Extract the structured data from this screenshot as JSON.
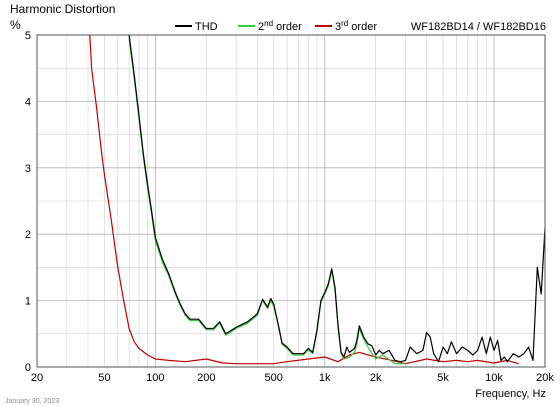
{
  "chart_data": {
    "type": "line",
    "title": "Harmonic Distortion",
    "ylabel": "%",
    "xlabel": "Frequency, Hz",
    "model_label": "WF182BD14 / WF182BD16",
    "date": "January 30, 2023",
    "x_scale": "log",
    "xlim": [
      20,
      20000
    ],
    "ylim": [
      0,
      5
    ],
    "grid": true,
    "legend_position": "top",
    "x_ticks": [
      {
        "v": 20,
        "label": "20"
      },
      {
        "v": 50,
        "label": "50"
      },
      {
        "v": 100,
        "label": "100"
      },
      {
        "v": 200,
        "label": "200"
      },
      {
        "v": 500,
        "label": "500"
      },
      {
        "v": 1000,
        "label": "1k"
      },
      {
        "v": 2000,
        "label": "2k"
      },
      {
        "v": 5000,
        "label": "5k"
      },
      {
        "v": 10000,
        "label": "10k"
      },
      {
        "v": 20000,
        "label": "20k"
      }
    ],
    "y_ticks": [
      {
        "v": 0,
        "label": "0"
      },
      {
        "v": 1,
        "label": "1"
      },
      {
        "v": 2,
        "label": "2"
      },
      {
        "v": 3,
        "label": "3"
      },
      {
        "v": 4,
        "label": "4"
      },
      {
        "v": 5,
        "label": "5"
      }
    ],
    "series": [
      {
        "name": "THD",
        "color": "#000000",
        "x": [
          70,
          75,
          80,
          85,
          90,
          95,
          100,
          110,
          120,
          130,
          140,
          150,
          160,
          180,
          200,
          220,
          240,
          260,
          280,
          300,
          350,
          400,
          430,
          460,
          480,
          500,
          530,
          560,
          600,
          650,
          700,
          750,
          800,
          850,
          900,
          950,
          1000,
          1050,
          1100,
          1150,
          1200,
          1250,
          1300,
          1350,
          1400,
          1500,
          1550,
          1600,
          1700,
          1800,
          1900,
          2000,
          2100,
          2200,
          2400,
          2600,
          2800,
          3000,
          3200,
          3500,
          3800,
          4000,
          4200,
          4400,
          4700,
          5000,
          5300,
          5600,
          6000,
          6500,
          7000,
          7500,
          8000,
          8500,
          9000,
          9500,
          10000,
          10500,
          11000,
          11500,
          12000,
          13000,
          14000,
          15000,
          16000,
          17000,
          18000,
          19000,
          20000
        ],
        "y": [
          5.0,
          4.4,
          3.8,
          3.2,
          2.75,
          2.35,
          1.95,
          1.62,
          1.4,
          1.15,
          0.95,
          0.8,
          0.72,
          0.72,
          0.58,
          0.58,
          0.68,
          0.5,
          0.55,
          0.6,
          0.68,
          0.8,
          1.02,
          0.9,
          1.03,
          0.95,
          0.66,
          0.36,
          0.3,
          0.2,
          0.2,
          0.2,
          0.28,
          0.22,
          0.55,
          1.0,
          1.12,
          1.25,
          1.48,
          1.2,
          0.62,
          0.22,
          0.15,
          0.3,
          0.22,
          0.28,
          0.4,
          0.62,
          0.45,
          0.35,
          0.32,
          0.18,
          0.25,
          0.2,
          0.25,
          0.1,
          0.08,
          0.1,
          0.3,
          0.2,
          0.25,
          0.52,
          0.45,
          0.2,
          0.08,
          0.3,
          0.2,
          0.38,
          0.2,
          0.3,
          0.25,
          0.18,
          0.25,
          0.45,
          0.2,
          0.45,
          0.25,
          0.4,
          0.1,
          0.15,
          0.08,
          0.2,
          0.15,
          0.2,
          0.3,
          0.1,
          1.5,
          1.1,
          2.1
        ]
      },
      {
        "name": "2nd order",
        "color": "#33cc33",
        "x": [
          70,
          75,
          80,
          85,
          90,
          95,
          100,
          110,
          120,
          130,
          140,
          150,
          160,
          180,
          200,
          220,
          240,
          260,
          280,
          300,
          350,
          400,
          430,
          460,
          480,
          500,
          530,
          560,
          600,
          650,
          700,
          750,
          800,
          850,
          900,
          950,
          1000,
          1050,
          1100,
          1150,
          1200,
          1250,
          1300,
          1400,
          1500,
          1550,
          1600,
          1700,
          1800,
          2000,
          2200,
          2600,
          3000
        ],
        "y": [
          4.95,
          4.35,
          3.75,
          3.15,
          2.7,
          2.3,
          1.9,
          1.58,
          1.37,
          1.12,
          0.93,
          0.78,
          0.7,
          0.7,
          0.56,
          0.56,
          0.66,
          0.48,
          0.53,
          0.58,
          0.66,
          0.78,
          1.0,
          0.88,
          1.0,
          0.92,
          0.64,
          0.34,
          0.28,
          0.18,
          0.18,
          0.18,
          0.26,
          0.2,
          0.53,
          0.97,
          1.1,
          1.22,
          1.45,
          1.15,
          0.58,
          0.2,
          0.12,
          0.15,
          0.22,
          0.35,
          0.58,
          0.42,
          0.3,
          0.12,
          0.18,
          0.05,
          0.05
        ]
      },
      {
        "name": "3rd order",
        "color": "#c00000",
        "x": [
          41,
          42,
          45,
          48,
          50,
          55,
          60,
          65,
          70,
          75,
          80,
          90,
          100,
          120,
          150,
          200,
          250,
          300,
          400,
          500,
          600,
          800,
          1000,
          1200,
          1400,
          1600,
          2000,
          2500,
          3000,
          4000,
          5000,
          6000,
          7000,
          8000,
          10000,
          12000,
          14000
        ],
        "y": [
          5.0,
          4.5,
          3.9,
          3.25,
          2.9,
          2.2,
          1.5,
          1.0,
          0.58,
          0.38,
          0.28,
          0.18,
          0.12,
          0.1,
          0.08,
          0.12,
          0.06,
          0.05,
          0.05,
          0.05,
          0.08,
          0.12,
          0.15,
          0.08,
          0.18,
          0.22,
          0.15,
          0.1,
          0.05,
          0.12,
          0.08,
          0.1,
          0.08,
          0.1,
          0.06,
          0.1,
          0.05
        ]
      }
    ]
  }
}
